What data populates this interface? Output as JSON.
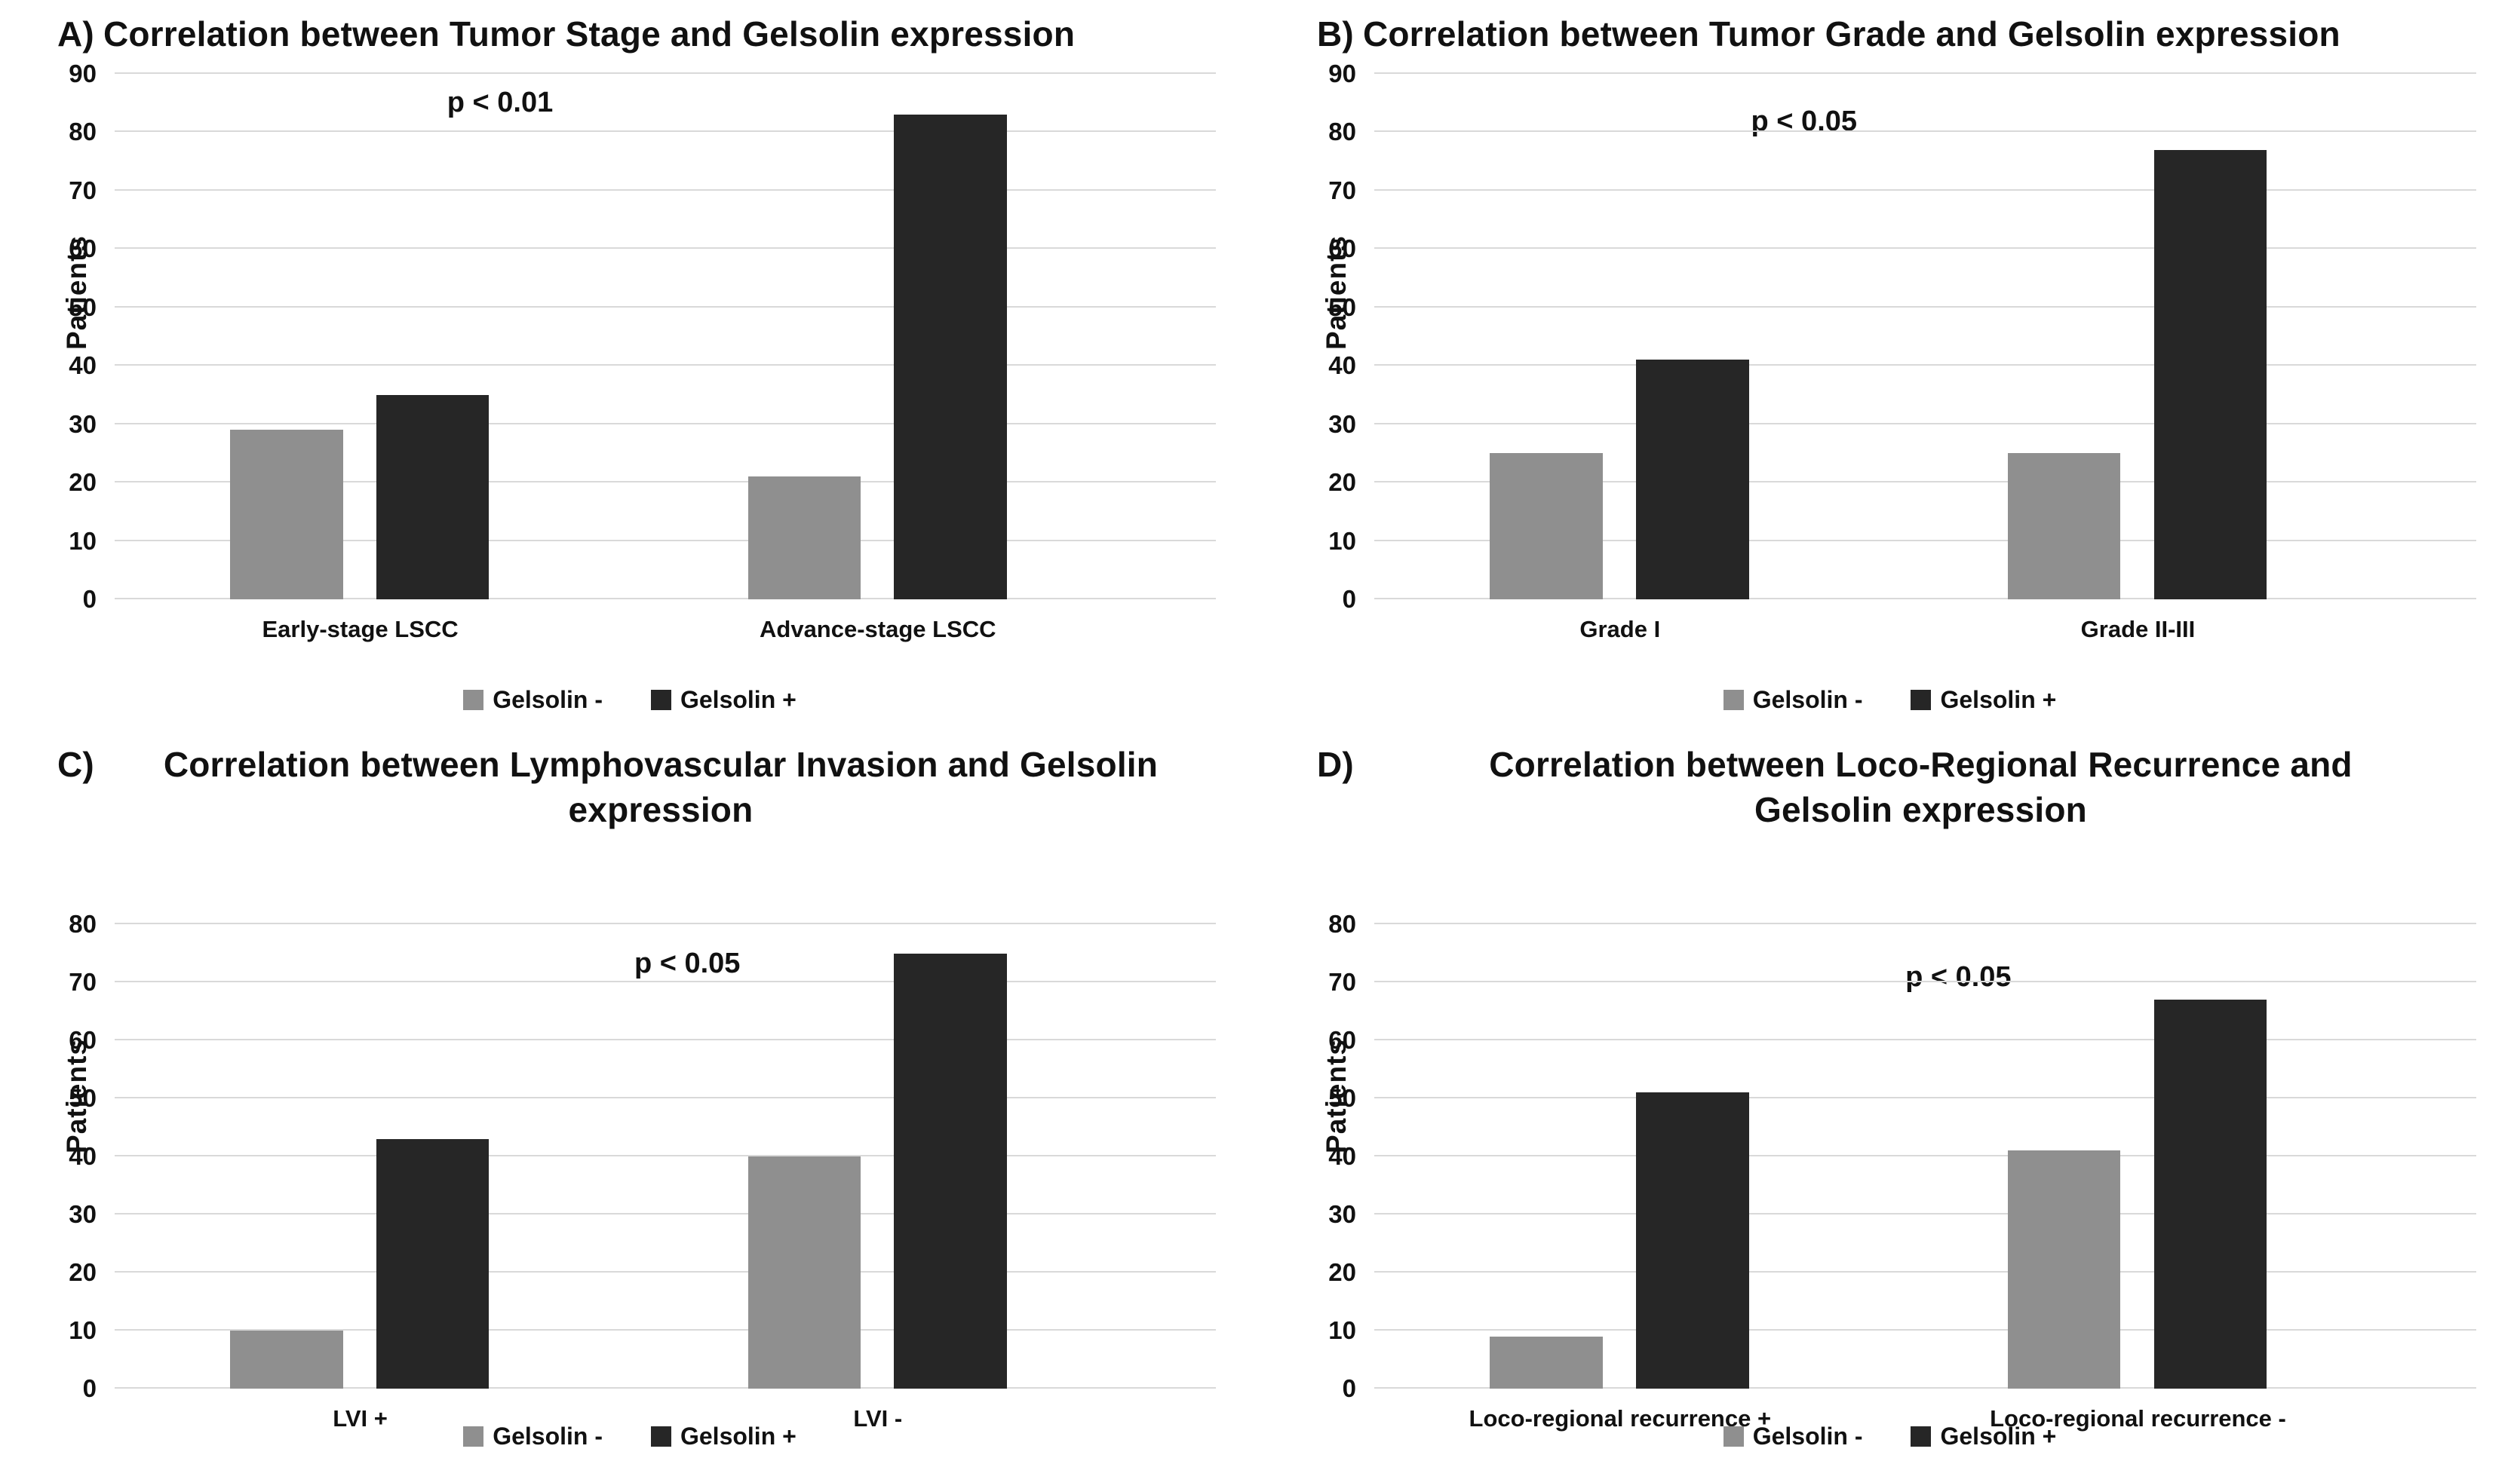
{
  "figure": {
    "background": "#ffffff",
    "gridline_color": "#d9d9d9",
    "series_colors": {
      "gelsolin_negative": "#8f8f8f",
      "gelsolin_positive": "#262626"
    }
  },
  "chart_data": [
    {
      "type": "bar",
      "panel_letter": "A)",
      "title": "Correlation between Tumor Stage and Gelsolin expression",
      "p_label": "p < 0.01",
      "ylabel": "Patients",
      "xlabel": "",
      "ylim": [
        0,
        90
      ],
      "ytick_step": 10,
      "grid": true,
      "legend_position": "bottom",
      "categories": [
        "Early-stage LSCC",
        "Advance-stage LSCC"
      ],
      "series": [
        {
          "name": "Gelsolin -",
          "color": "#8f8f8f",
          "values": [
            29,
            21
          ]
        },
        {
          "name": "Gelsolin +",
          "color": "#262626",
          "values": [
            35,
            83
          ]
        }
      ]
    },
    {
      "type": "bar",
      "panel_letter": "B)",
      "title": "Correlation between Tumor Grade and Gelsolin expression",
      "p_label": "p < 0.05",
      "ylabel": "Patients",
      "xlabel": "",
      "ylim": [
        0,
        90
      ],
      "ytick_step": 10,
      "grid": true,
      "legend_position": "bottom",
      "categories": [
        "Grade I",
        "Grade II-III"
      ],
      "series": [
        {
          "name": "Gelsolin -",
          "color": "#8f8f8f",
          "values": [
            25,
            25
          ]
        },
        {
          "name": "Gelsolin +",
          "color": "#262626",
          "values": [
            41,
            77
          ]
        }
      ]
    },
    {
      "type": "bar",
      "panel_letter": "C)",
      "title": "Correlation between Lymphovascular Invasion and Gelsolin\nexpression",
      "p_label": "p < 0.05",
      "ylabel": "Patients",
      "xlabel": "",
      "ylim": [
        0,
        80
      ],
      "ytick_step": 10,
      "grid": true,
      "legend_position": "bottom",
      "categories": [
        "LVI +",
        "LVI -"
      ],
      "series": [
        {
          "name": "Gelsolin -",
          "color": "#8f8f8f",
          "values": [
            10,
            40
          ]
        },
        {
          "name": "Gelsolin +",
          "color": "#262626",
          "values": [
            43,
            75
          ]
        }
      ]
    },
    {
      "type": "bar",
      "panel_letter": "D)",
      "title": "Correlation between Loco-Regional Recurrence and\nGelsolin expression",
      "p_label": "p < 0.05",
      "ylabel": "Patients",
      "xlabel": "",
      "ylim": [
        0,
        80
      ],
      "ytick_step": 10,
      "grid": true,
      "legend_position": "bottom",
      "categories": [
        "Loco-regional recurrence +",
        "Loco-regional recurrence -"
      ],
      "series": [
        {
          "name": "Gelsolin -",
          "color": "#8f8f8f",
          "values": [
            9,
            41
          ]
        },
        {
          "name": "Gelsolin +",
          "color": "#262626",
          "values": [
            51,
            67
          ]
        }
      ]
    }
  ]
}
